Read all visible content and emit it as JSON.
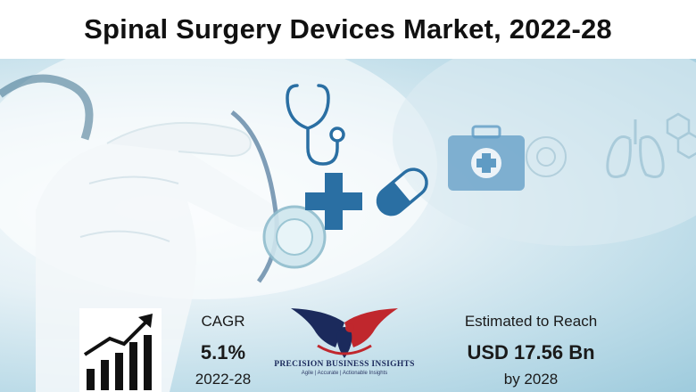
{
  "title": "Spinal Surgery Devices Market, 2022-28",
  "cagr": {
    "label": "CAGR",
    "value": "5.1%",
    "years": "2022-28"
  },
  "estimate": {
    "label": "Estimated to Reach",
    "value": "USD 17.56 Bn",
    "year": "by 2028"
  },
  "logo": {
    "name": "PRECISION BUSINESS INSIGHTS",
    "tagline": "Agile | Accurate | Actionable Insights"
  },
  "colors": {
    "icon_blue": "#2a6fa3",
    "logo_red": "#c0272d",
    "logo_navy": "#1b2a5c",
    "text_dark": "#111111"
  },
  "icons": [
    "stethoscope-icon",
    "medical-cross-icon",
    "capsule-icon",
    "first-aid-kit-icon",
    "lungs-icon",
    "hexagon-molecule-icon",
    "growth-chart-icon",
    "eagle-logo-icon"
  ]
}
